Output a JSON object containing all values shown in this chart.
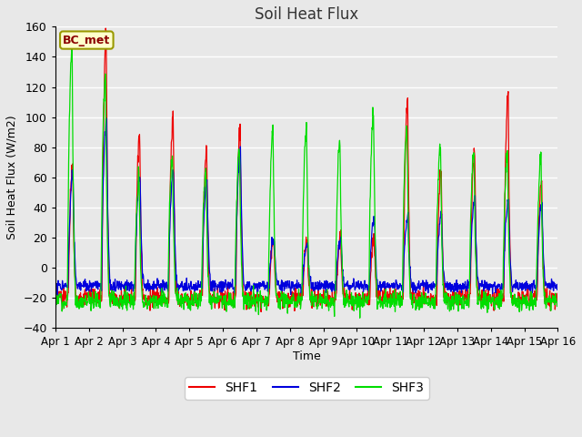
{
  "title": "Soil Heat Flux",
  "ylabel": "Soil Heat Flux (W/m2)",
  "xlabel": "Time",
  "ylim": [
    -40,
    160
  ],
  "yticks": [
    -40,
    -20,
    0,
    20,
    40,
    60,
    80,
    100,
    120,
    140,
    160
  ],
  "x_labels": [
    "Apr 1",
    "Apr 2",
    "Apr 3",
    "Apr 4",
    "Apr 5",
    "Apr 6",
    "Apr 7",
    "Apr 8",
    "Apr 9",
    "Apr 10",
    "Apr 11",
    "Apr 12",
    "Apr 13",
    "Apr 14",
    "Apr 15",
    "Apr 16"
  ],
  "shf1_color": "#ee0000",
  "shf2_color": "#0000dd",
  "shf3_color": "#00dd00",
  "legend_label": "BC_met",
  "bg_color": "#e8e8e8",
  "plot_bg": "#d8d8d8",
  "grid_color": "#ffffff",
  "fig_bg": "#e8e8e8",
  "shf1_peaks": [
    70,
    155,
    90,
    103,
    80,
    93,
    20,
    20,
    20,
    20,
    112,
    65,
    80,
    116,
    57
  ],
  "shf2_peaks": [
    62,
    100,
    60,
    65,
    58,
    78,
    20,
    18,
    20,
    33,
    33,
    34,
    47,
    44,
    43
  ],
  "shf3_peaks": [
    147,
    130,
    57,
    75,
    65,
    80,
    90,
    93,
    83,
    105,
    95,
    80,
    80,
    75,
    73
  ],
  "shf1_night": -20,
  "shf2_night": -12,
  "shf3_night": -22,
  "n_days": 15,
  "pts_per_day": 96
}
